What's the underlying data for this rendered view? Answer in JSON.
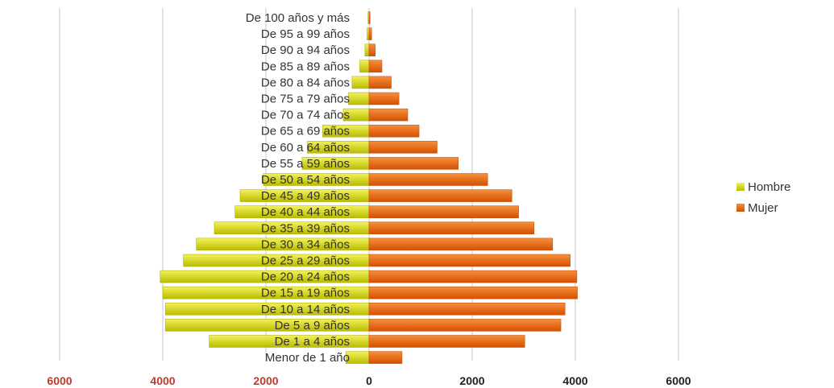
{
  "chart_data": {
    "type": "bar",
    "orientation": "horizontal",
    "title": "",
    "xlabel": "",
    "ylabel": "",
    "xlim": [
      -6000,
      6000
    ],
    "x_ticks": [
      "6000",
      "4000",
      "2000",
      "0",
      "2000",
      "4000",
      "6000"
    ],
    "grid": "vertical",
    "legend_position": "right",
    "categories": [
      "De 100 años y más",
      "De 95 a 99 años",
      "De 90 a 94 años",
      "De 85 a 89 años",
      "De 80 a 84 años",
      "De 75 a 79 años",
      "De 70 a 74 años",
      "De 65 a 69 años",
      "De 60 a 64 años",
      "De 55 a 59 años",
      "De 50 a 54 años",
      "De 45 a 49 años",
      "De 40 a 44 años",
      "De 35 a 39 años",
      "De 30 a 34 años",
      "De 25 a 29 años",
      "De 20 a 24 años",
      "De 15 a 19 años",
      "De 10 a 14 años",
      "De 5 a 9 años",
      "De 1 a 4 años",
      "Menor de 1 año"
    ],
    "series": [
      {
        "name": "Hombre",
        "color": "#d4d600",
        "values": [
          -20,
          -40,
          -80,
          -180,
          -330,
          -400,
          -500,
          -900,
          -1200,
          -1300,
          -2050,
          -2500,
          -2600,
          -3000,
          -3350,
          -3600,
          -4050,
          -4000,
          -3950,
          -3950,
          -3100,
          -450
        ]
      },
      {
        "name": "Mujer",
        "color": "#e8600c",
        "values": [
          20,
          50,
          120,
          250,
          430,
          580,
          750,
          970,
          1320,
          1730,
          2300,
          2770,
          2900,
          3200,
          3560,
          3900,
          4030,
          4040,
          3800,
          3720,
          3020,
          640
        ]
      }
    ]
  }
}
